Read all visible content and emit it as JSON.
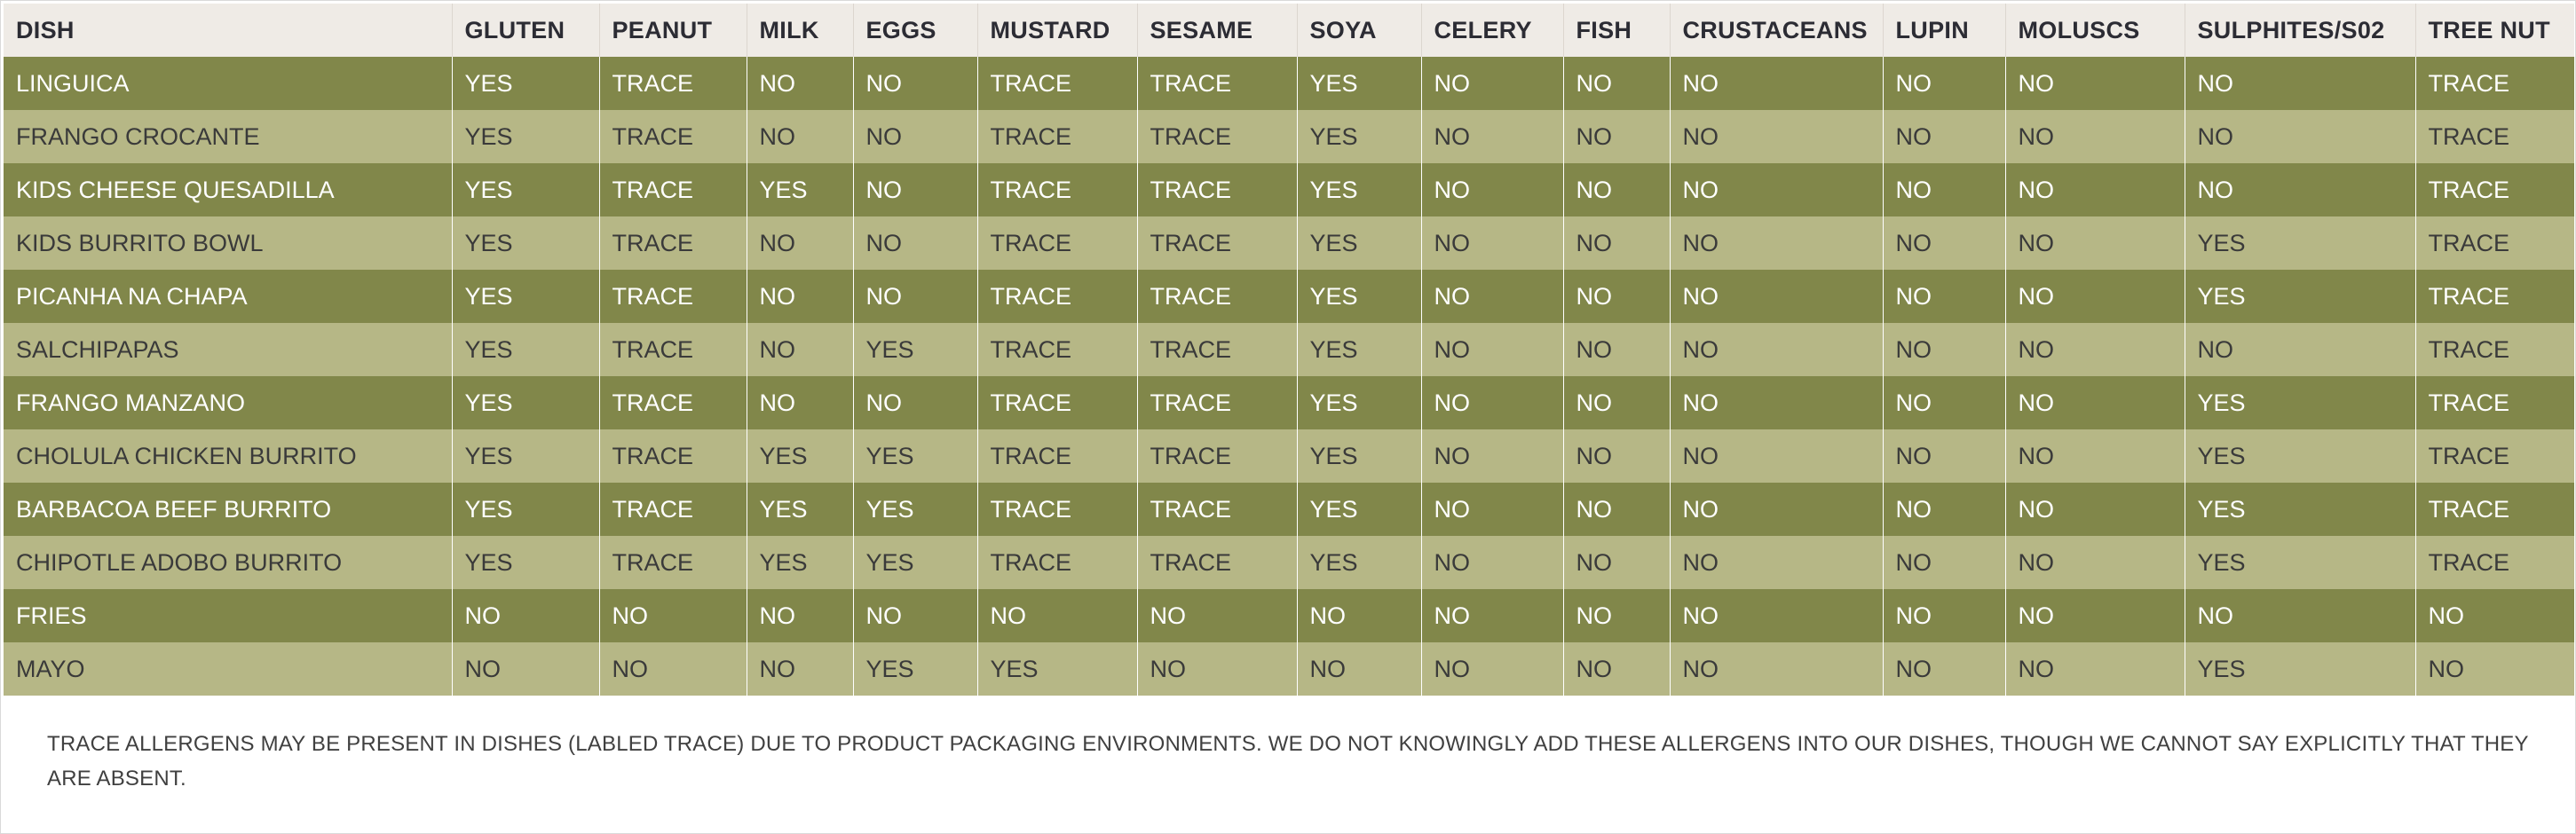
{
  "table": {
    "headers": [
      "DISH",
      "GLUTEN",
      "PEANUT",
      "MILK",
      "EGGS",
      "MUSTARD",
      "SESAME",
      "SOYA",
      "CELERY",
      "FISH",
      "CRUSTACEANS",
      "LUPIN",
      "MOLUSCS",
      "SULPHITES/S02",
      "TREE NUT"
    ],
    "rows": [
      {
        "dish": "LINGUICA",
        "values": [
          "YES",
          "TRACE",
          "NO",
          "NO",
          "TRACE",
          "TRACE",
          "YES",
          "NO",
          "NO",
          "NO",
          "NO",
          "NO",
          "NO",
          "TRACE"
        ]
      },
      {
        "dish": "FRANGO CROCANTE",
        "values": [
          "YES",
          "TRACE",
          "NO",
          "NO",
          "TRACE",
          "TRACE",
          "YES",
          "NO",
          "NO",
          "NO",
          "NO",
          "NO",
          "NO",
          "TRACE"
        ]
      },
      {
        "dish": "KIDS CHEESE QUESADILLA",
        "values": [
          "YES",
          "TRACE",
          "YES",
          "NO",
          "TRACE",
          "TRACE",
          "YES",
          "NO",
          "NO",
          "NO",
          "NO",
          "NO",
          "NO",
          "TRACE"
        ]
      },
      {
        "dish": "KIDS BURRITO BOWL",
        "values": [
          "YES",
          "TRACE",
          "NO",
          "NO",
          "TRACE",
          "TRACE",
          "YES",
          "NO",
          "NO",
          "NO",
          "NO",
          "NO",
          "YES",
          "TRACE"
        ]
      },
      {
        "dish": "PICANHA NA CHAPA",
        "values": [
          "YES",
          "TRACE",
          "NO",
          "NO",
          "TRACE",
          "TRACE",
          "YES",
          "NO",
          "NO",
          "NO",
          "NO",
          "NO",
          "YES",
          "TRACE"
        ]
      },
      {
        "dish": "SALCHIPAPAS",
        "values": [
          "YES",
          "TRACE",
          "NO",
          "YES",
          "TRACE",
          "TRACE",
          "YES",
          "NO",
          "NO",
          "NO",
          "NO",
          "NO",
          "NO",
          "TRACE"
        ]
      },
      {
        "dish": "FRANGO MANZANO",
        "values": [
          "YES",
          "TRACE",
          "NO",
          "NO",
          "TRACE",
          "TRACE",
          "YES",
          "NO",
          "NO",
          "NO",
          "NO",
          "NO",
          "YES",
          "TRACE"
        ]
      },
      {
        "dish": "CHOLULA CHICKEN BURRITO",
        "values": [
          "YES",
          "TRACE",
          "YES",
          "YES",
          "TRACE",
          "TRACE",
          "YES",
          "NO",
          "NO",
          "NO",
          "NO",
          "NO",
          "YES",
          "TRACE"
        ]
      },
      {
        "dish": "BARBACOA BEEF BURRITO",
        "values": [
          "YES",
          "TRACE",
          "YES",
          "YES",
          "TRACE",
          "TRACE",
          "YES",
          "NO",
          "NO",
          "NO",
          "NO",
          "NO",
          "YES",
          "TRACE"
        ]
      },
      {
        "dish": "CHIPOTLE ADOBO BURRITO",
        "values": [
          "YES",
          "TRACE",
          "YES",
          "YES",
          "TRACE",
          "TRACE",
          "YES",
          "NO",
          "NO",
          "NO",
          "NO",
          "NO",
          "YES",
          "TRACE"
        ]
      },
      {
        "dish": "FRIES",
        "values": [
          "NO",
          "NO",
          "NO",
          "NO",
          "NO",
          "NO",
          "NO",
          "NO",
          "NO",
          "NO",
          "NO",
          "NO",
          "NO",
          "NO"
        ]
      },
      {
        "dish": "MAYO",
        "values": [
          "NO",
          "NO",
          "NO",
          "YES",
          "YES",
          "NO",
          "NO",
          "NO",
          "NO",
          "NO",
          "NO",
          "NO",
          "YES",
          "NO"
        ]
      }
    ]
  },
  "footnote": "TRACE ALLERGENS MAY BE PRESENT IN  DISHES (LABLED TRACE) DUE TO PRODUCT PACKAGING ENVIRONMENTS. WE DO NOT KNOWINGLY ADD THESE ALLERGENS INTO OUR DISHES, THOUGH WE CANNOT SAY EXPLICITLY THAT THEY ARE ABSENT.",
  "colors": {
    "header_bg": "#efebe6",
    "row_dark": "#81874a",
    "row_light": "#b6b786"
  }
}
